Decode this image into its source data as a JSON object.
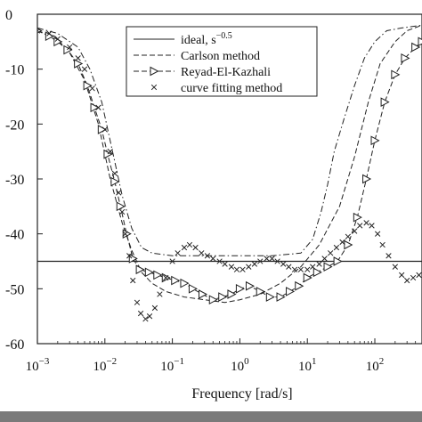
{
  "chart_data": {
    "type": "line",
    "title": "",
    "xlabel": "Frequency [rad/s]",
    "ylabel": "",
    "x_scale": "log",
    "xlim": [
      0.001,
      500
    ],
    "ylim": [
      -60,
      0
    ],
    "x_ticks": [
      {
        "value": 0.001,
        "base": "10",
        "exp": "−3"
      },
      {
        "value": 0.01,
        "base": "10",
        "exp": "−2"
      },
      {
        "value": 0.1,
        "base": "10",
        "exp": "−1"
      },
      {
        "value": 1,
        "base": "10",
        "exp": "0"
      },
      {
        "value": 10,
        "base": "10",
        "exp": "1"
      },
      {
        "value": 100,
        "base": "10",
        "exp": "2"
      }
    ],
    "y_ticks": [
      0,
      -10,
      -20,
      -30,
      -40,
      -50,
      -60
    ],
    "y_tick_labels": [
      "0",
      "-10",
      "-20",
      "-30",
      "-40",
      "-50",
      "-60"
    ],
    "grid": false,
    "legend_position": "top-right",
    "legend": [
      {
        "label": "ideal, s",
        "sup": "−0.5",
        "style": "solid",
        "marker": ""
      },
      {
        "label": "Carlson method",
        "style": "dashed",
        "marker": ""
      },
      {
        "label": "Reyad-El-Kazhali",
        "style": "dashed",
        "marker": "triangle"
      },
      {
        "label": "curve fitting method",
        "style": "none",
        "marker": "x"
      }
    ],
    "series": [
      {
        "style": "solid",
        "marker": "",
        "x": [
          0.001,
          500
        ],
        "y": [
          -45,
          -45
        ]
      },
      {
        "style": "dashed",
        "marker": "",
        "x": [
          0.001,
          0.0018,
          0.003,
          0.005,
          0.008,
          0.012,
          0.018,
          0.025,
          0.035,
          0.05,
          0.08,
          0.15,
          0.3,
          0.6,
          1,
          2,
          4,
          8,
          15,
          30,
          50,
          80,
          120,
          200,
          300,
          500
        ],
        "y": [
          -3,
          -4,
          -7,
          -12,
          -20,
          -30,
          -38,
          -43,
          -47,
          -49,
          -50.5,
          -51.5,
          -52,
          -52.5,
          -52,
          -51,
          -49,
          -46,
          -42,
          -35,
          -26,
          -16,
          -9,
          -5,
          -3,
          -2
        ]
      },
      {
        "style": "dashdot",
        "marker": "",
        "x": [
          0.001,
          0.002,
          0.004,
          0.006,
          0.009,
          0.013,
          0.018,
          0.025,
          0.035,
          0.05,
          0.1,
          0.3,
          1,
          3,
          8,
          12,
          16,
          20,
          25,
          35,
          50,
          70,
          100,
          150,
          250,
          500
        ],
        "y": [
          -2.5,
          -3.5,
          -6,
          -10,
          -16,
          -25,
          -33,
          -39,
          -42.5,
          -43.5,
          -44,
          -44,
          -44,
          -44,
          -43.5,
          -41,
          -36,
          -31,
          -25,
          -19,
          -13,
          -8,
          -5,
          -3,
          -2.5,
          -2
        ]
      },
      {
        "style": "dashed",
        "marker": "triangle",
        "x": [
          0.001,
          0.0015,
          0.002,
          0.0028,
          0.004,
          0.0055,
          0.007,
          0.009,
          0.011,
          0.014,
          0.017,
          0.021,
          0.026,
          0.033,
          0.045,
          0.06,
          0.08,
          0.11,
          0.15,
          0.2,
          0.28,
          0.4,
          0.55,
          0.75,
          1,
          1.4,
          2,
          2.8,
          4,
          5.5,
          7.5,
          10,
          14,
          20,
          28,
          40,
          55,
          75,
          100,
          140,
          200,
          280,
          400,
          500
        ],
        "y": [
          -3,
          -4,
          -5,
          -6.5,
          -9,
          -13,
          -17,
          -21,
          -25.5,
          -30.5,
          -35,
          -40,
          -44.5,
          -46.5,
          -47,
          -47.5,
          -48,
          -48.5,
          -49,
          -50,
          -51,
          -52,
          -51.5,
          -51,
          -50,
          -49.5,
          -50.5,
          -51.5,
          -51.5,
          -50.5,
          -49.5,
          -48,
          -47,
          -46,
          -45,
          -42,
          -37,
          -30,
          -23,
          -16,
          -11,
          -8,
          -6,
          -5
        ]
      },
      {
        "style": "none",
        "marker": "x",
        "x": [
          0.001,
          0.0015,
          0.002,
          0.003,
          0.004,
          0.005,
          0.0065,
          0.008,
          0.01,
          0.012,
          0.014,
          0.016,
          0.018,
          0.02,
          0.023,
          0.026,
          0.03,
          0.034,
          0.04,
          0.046,
          0.055,
          0.065,
          0.08,
          0.1,
          0.12,
          0.15,
          0.18,
          0.22,
          0.27,
          0.33,
          0.4,
          0.5,
          0.6,
          0.75,
          0.9,
          1.1,
          1.35,
          1.65,
          2,
          2.5,
          3,
          3.6,
          4.4,
          5.3,
          6.5,
          8,
          10,
          12,
          15,
          18,
          22,
          27,
          33,
          40,
          50,
          60,
          75,
          90,
          110,
          130,
          160,
          200,
          250,
          300,
          370,
          450
        ],
        "y": [
          -3,
          -3.5,
          -4.5,
          -6,
          -8,
          -10,
          -13.5,
          -17,
          -21,
          -25,
          -29,
          -32.5,
          -36,
          -40,
          -44,
          -48.5,
          -52.5,
          -54.5,
          -55.5,
          -55,
          -53.5,
          -51,
          -48,
          -45,
          -43.5,
          -42.5,
          -42,
          -42.5,
          -43.5,
          -44,
          -44.5,
          -45,
          -45.5,
          -46,
          -46.5,
          -46.5,
          -46,
          -45.5,
          -45,
          -44.5,
          -44.5,
          -45,
          -45.5,
          -46,
          -46.5,
          -46.5,
          -46.5,
          -46,
          -45.5,
          -44.5,
          -43.5,
          -42.5,
          -41.5,
          -40.5,
          -39.5,
          -38.5,
          -38,
          -38.5,
          -40,
          -42,
          -44,
          -46,
          -47.5,
          -48.5,
          -48,
          -47.5
        ]
      }
    ]
  }
}
